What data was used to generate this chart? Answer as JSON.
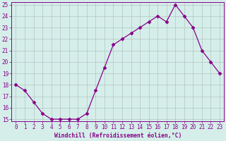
{
  "x": [
    0,
    1,
    2,
    3,
    4,
    5,
    6,
    7,
    8,
    9,
    10,
    11,
    12,
    13,
    14,
    15,
    16,
    17,
    18,
    19,
    20,
    21,
    22,
    23
  ],
  "y": [
    18,
    17.5,
    16.5,
    15.5,
    15.0,
    15.0,
    15.0,
    15.0,
    15.5,
    17.5,
    19.5,
    21.5,
    22.0,
    22.5,
    23.0,
    23.5,
    24.0,
    23.5,
    25.0,
    24.0,
    23.0,
    21.0,
    20.0,
    19.0
  ],
  "line_color": "#880088",
  "marker": "D",
  "markersize": 2.5,
  "linewidth": 0.9,
  "bg_color": "#d5eeea",
  "grid_color": "#aabbbb",
  "xlabel": "Windchill (Refroidissement éolien,°C)",
  "xlabel_color": "#880088",
  "tick_color": "#880088",
  "spine_color": "#880088",
  "ylim": [
    15,
    25
  ],
  "xlim": [
    -0.5,
    23.5
  ],
  "yticks": [
    15,
    16,
    17,
    18,
    19,
    20,
    21,
    22,
    23,
    24,
    25
  ],
  "xticks": [
    0,
    1,
    2,
    3,
    4,
    5,
    6,
    7,
    8,
    9,
    10,
    11,
    12,
    13,
    14,
    15,
    16,
    17,
    18,
    19,
    20,
    21,
    22,
    23
  ],
  "axis_fontsize": 5.8,
  "tick_fontsize": 5.5
}
